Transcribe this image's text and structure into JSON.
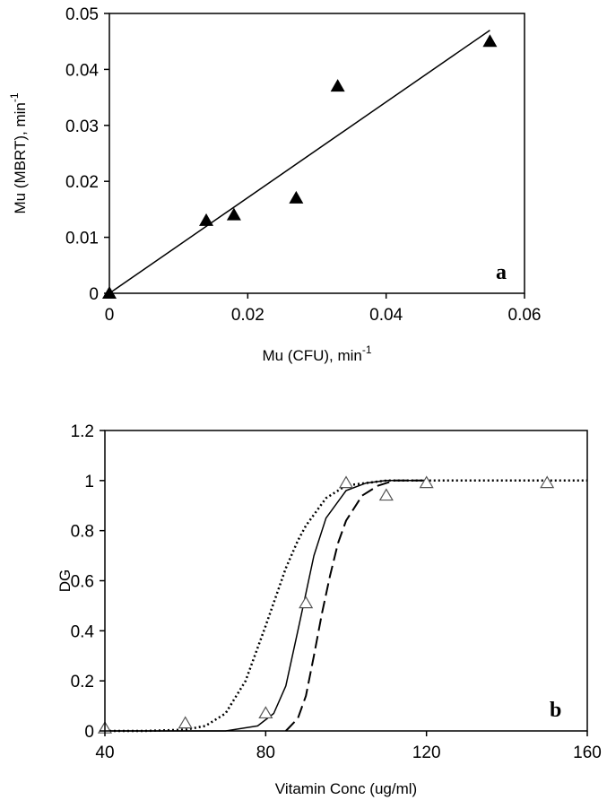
{
  "chart_data": [
    {
      "type": "scatter",
      "panel_label": "a",
      "xlabel": "Mu (CFU), min",
      "xlabel_sup": "-1",
      "ylabel": "Mu (MBRT), min",
      "ylabel_sup": "-1",
      "xlim": [
        0,
        0.06
      ],
      "ylim": [
        0,
        0.05
      ],
      "xticks": [
        0,
        0.02,
        0.04,
        0.06
      ],
      "xtick_labels": [
        "0",
        "0.02",
        "0.04",
        "0.06"
      ],
      "yticks": [
        0,
        0.01,
        0.02,
        0.03,
        0.04,
        0.05
      ],
      "ytick_labels": [
        "0",
        "0.01",
        "0.02",
        "0.03",
        "0.04",
        "0.05"
      ],
      "grid": false,
      "marker": "filled-triangle",
      "points": [
        {
          "x": 0,
          "y": 0
        },
        {
          "x": 0.014,
          "y": 0.013
        },
        {
          "x": 0.018,
          "y": 0.014
        },
        {
          "x": 0.027,
          "y": 0.017
        },
        {
          "x": 0.033,
          "y": 0.037
        },
        {
          "x": 0.055,
          "y": 0.045
        }
      ],
      "trendline": {
        "x": [
          0,
          0.055
        ],
        "y": [
          0,
          0.047
        ]
      }
    },
    {
      "type": "line",
      "panel_label": "b",
      "xlabel": "Vitamin Conc (ug/ml)",
      "ylabel": "DG",
      "xlim": [
        40,
        160
      ],
      "ylim": [
        0,
        1.2
      ],
      "xticks": [
        40,
        80,
        120,
        160
      ],
      "xtick_labels": [
        "40",
        "80",
        "120",
        "160"
      ],
      "yticks": [
        0,
        0.2,
        0.4,
        0.6,
        0.8,
        1.0,
        1.2
      ],
      "ytick_labels": [
        "0",
        "0.2",
        "0.4",
        "0.6",
        "0.8",
        "1",
        "1.2"
      ],
      "grid": false,
      "marker": "open-triangle",
      "points": [
        {
          "x": 40,
          "y": 0.01
        },
        {
          "x": 60,
          "y": 0.03
        },
        {
          "x": 80,
          "y": 0.07
        },
        {
          "x": 90,
          "y": 0.51
        },
        {
          "x": 100,
          "y": 0.99
        },
        {
          "x": 110,
          "y": 0.94
        },
        {
          "x": 120,
          "y": 0.99
        },
        {
          "x": 150,
          "y": 0.99
        }
      ],
      "series": [
        {
          "style": "dotted",
          "x": [
            40,
            50,
            60,
            65,
            70,
            75,
            80,
            85,
            88,
            90,
            95,
            100,
            110,
            120,
            160
          ],
          "y": [
            0,
            0,
            0.005,
            0.02,
            0.07,
            0.2,
            0.42,
            0.65,
            0.76,
            0.82,
            0.93,
            0.98,
            1.0,
            1.0,
            1.0
          ]
        },
        {
          "style": "solid",
          "x": [
            40,
            70,
            78,
            82,
            85,
            88,
            90,
            92,
            95,
            100,
            105,
            110,
            120
          ],
          "y": [
            0,
            0,
            0.02,
            0.07,
            0.18,
            0.4,
            0.55,
            0.7,
            0.85,
            0.96,
            0.99,
            1.0,
            1.0
          ]
        },
        {
          "style": "dashed",
          "x": [
            85,
            88,
            90,
            92,
            94,
            96,
            98,
            100,
            104,
            108,
            112,
            120
          ],
          "y": [
            0,
            0.05,
            0.14,
            0.3,
            0.47,
            0.62,
            0.75,
            0.84,
            0.94,
            0.98,
            1.0,
            1.0
          ]
        }
      ]
    }
  ]
}
